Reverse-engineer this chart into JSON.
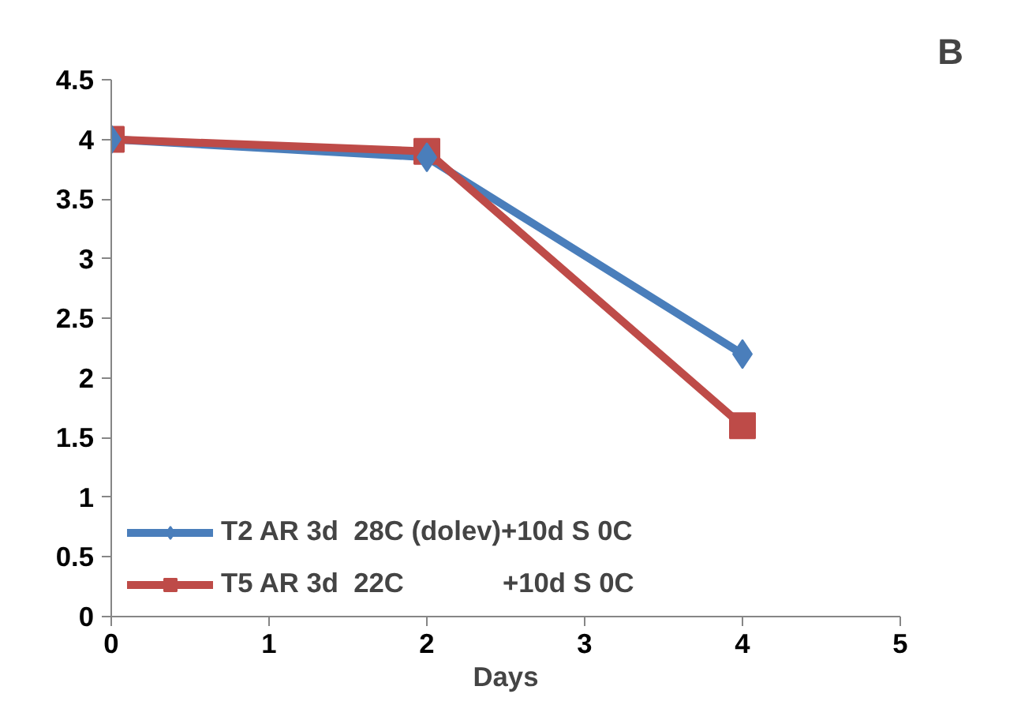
{
  "chart_data": {
    "type": "line",
    "xlabel": "Days",
    "annotations": [
      "B"
    ],
    "x": [
      0,
      2,
      4
    ],
    "xlim": [
      0,
      5
    ],
    "xticks": [
      0,
      1,
      2,
      3,
      4,
      5
    ],
    "ylim": [
      0,
      4.5
    ],
    "yticks": [
      0,
      0.5,
      1,
      1.5,
      2,
      2.5,
      3,
      3.5,
      4,
      4.5
    ],
    "grid": false,
    "legend": "bottom left",
    "series": [
      {
        "name": "T2 AR 3d  28C (dolev)+10d S 0C",
        "color": "#4a7ebb",
        "marker": "diamond",
        "values": [
          4,
          3.85,
          2.2
        ]
      },
      {
        "name": "T5 AR 3d  22C             +10d S 0C",
        "color": "#be4b48",
        "marker": "square",
        "values": [
          4,
          3.9,
          1.6
        ]
      }
    ]
  }
}
